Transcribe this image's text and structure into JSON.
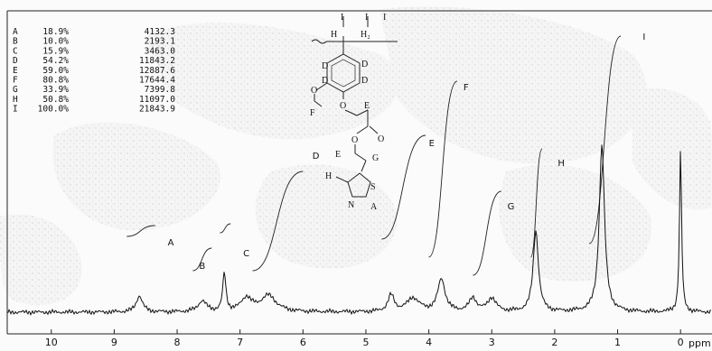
{
  "chart_data": {
    "type": "line",
    "title": "",
    "xlabel": "ppm",
    "ylabel": "",
    "x_axis": {
      "range": [
        10.7,
        -0.5
      ],
      "reversed": true,
      "ticks": [
        10,
        9,
        8,
        7,
        6,
        5,
        4,
        3,
        2,
        1,
        0
      ]
    },
    "integral_table": [
      {
        "label": "A",
        "percent": "18.9%",
        "value": "4132.3"
      },
      {
        "label": "B",
        "percent": "10.0%",
        "value": "2193.1"
      },
      {
        "label": "C",
        "percent": "15.9%",
        "value": "3463.0"
      },
      {
        "label": "D",
        "percent": "54.2%",
        "value": "11843.2"
      },
      {
        "label": "E",
        "percent": "59.0%",
        "value": "12887.6"
      },
      {
        "label": "F",
        "percent": "80.8%",
        "value": "17644.4"
      },
      {
        "label": "G",
        "percent": "33.9%",
        "value": "7399.8"
      },
      {
        "label": "H",
        "percent": "50.8%",
        "value": "11097.0"
      },
      {
        "label": "I",
        "percent": "100.0%",
        "value": "21843.9"
      }
    ],
    "peaks": [
      {
        "label": "A",
        "ppm": 8.6,
        "height": 0.06,
        "width": 0.06
      },
      {
        "label": "B",
        "ppm": 7.6,
        "height": 0.04,
        "width": 0.08
      },
      {
        "label": "C",
        "ppm": 7.25,
        "height": 0.14,
        "width": 0.03
      },
      {
        "label": "D",
        "ppm": 6.9,
        "height": 0.05,
        "width": 0.1
      },
      {
        "label": "D",
        "ppm": 6.55,
        "height": 0.06,
        "width": 0.15
      },
      {
        "label": "E",
        "ppm": 4.6,
        "height": 0.06,
        "width": 0.06
      },
      {
        "label": "E",
        "ppm": 4.25,
        "height": 0.05,
        "width": 0.12
      },
      {
        "label": "F",
        "ppm": 3.8,
        "height": 0.12,
        "width": 0.07
      },
      {
        "label": "G",
        "ppm": 3.3,
        "height": 0.05,
        "width": 0.07
      },
      {
        "label": "G",
        "ppm": 3.0,
        "height": 0.05,
        "width": 0.08
      },
      {
        "label": "H",
        "ppm": 2.3,
        "height": 0.3,
        "width": 0.05
      },
      {
        "label": "I",
        "ppm": 1.25,
        "height": 0.62,
        "width": 0.05
      },
      {
        "label": "",
        "ppm": 0.0,
        "height": 0.6,
        "width": 0.02
      }
    ],
    "integral_labels": [
      {
        "label": "A",
        "ppm": 8.15
      },
      {
        "label": "B",
        "ppm": 7.65
      },
      {
        "label": "C",
        "ppm": 6.95
      },
      {
        "label": "D",
        "ppm": 5.85
      },
      {
        "label": "E",
        "ppm": 4.0
      },
      {
        "label": "F",
        "ppm": 3.45
      },
      {
        "label": "G",
        "ppm": 2.75
      },
      {
        "label": "H",
        "ppm": 1.95
      },
      {
        "label": "I",
        "ppm": 0.6
      }
    ]
  },
  "structure": {
    "atom_labels": [
      "I",
      "I",
      "I",
      "H",
      "H₂",
      "D",
      "D",
      "D",
      "D",
      "O",
      "F",
      "O",
      "E",
      "O",
      "O",
      "E",
      "G",
      "H",
      "S",
      "N",
      "A"
    ]
  }
}
